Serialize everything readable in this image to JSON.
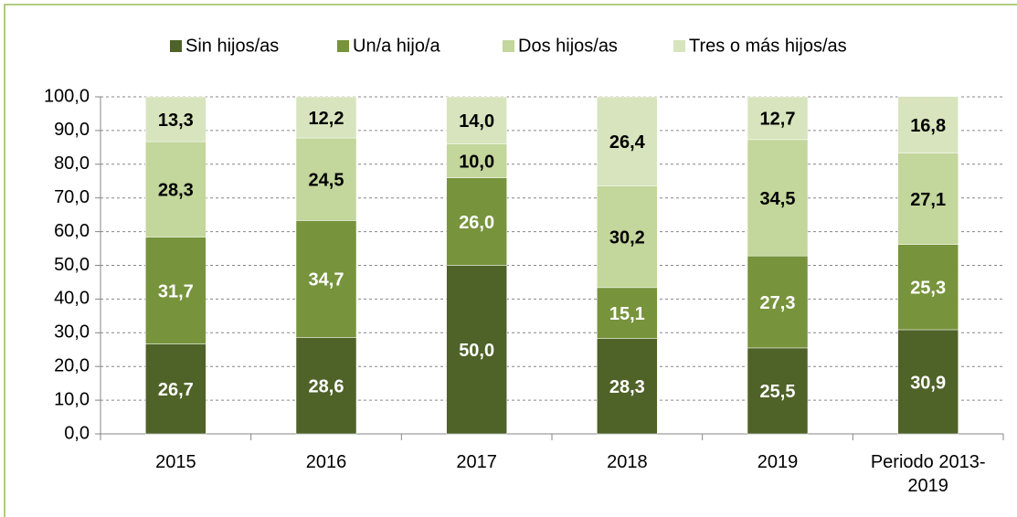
{
  "chart_data": {
    "type": "stacked_bar",
    "categories": [
      "2015",
      "2016",
      "2017",
      "2018",
      "2019",
      "Periodo 2013-2019"
    ],
    "series": [
      {
        "name": "Sin hijos/as",
        "color": "#4f6228",
        "label_color": "#ffffff",
        "values": [
          26.7,
          28.6,
          50.0,
          28.3,
          25.5,
          30.9
        ],
        "value_labels": [
          "26,7",
          "28,6",
          "50,0",
          "28,3",
          "25,5",
          "30,9"
        ]
      },
      {
        "name": "Un/a hijo/a",
        "color": "#77933c",
        "label_color": "#ffffff",
        "values": [
          31.7,
          34.7,
          26.0,
          15.1,
          27.3,
          25.3
        ],
        "value_labels": [
          "31,7",
          "34,7",
          "26,0",
          "15,1",
          "27,3",
          "25,3"
        ]
      },
      {
        "name": "Dos hijos/as",
        "color": "#c3d69b",
        "label_color": "#000000",
        "values": [
          28.3,
          24.5,
          10.0,
          30.2,
          34.5,
          27.1
        ],
        "value_labels": [
          "28,3",
          "24,5",
          "10,0",
          "30,2",
          "34,5",
          "27,1"
        ]
      },
      {
        "name": "Tres o más hijos/as",
        "color": "#d7e4bd",
        "label_color": "#000000",
        "values": [
          13.3,
          12.2,
          14.0,
          26.4,
          12.7,
          16.8
        ],
        "value_labels": [
          "13,3",
          "12,2",
          "14,0",
          "26,4",
          "12,7",
          "16,8"
        ]
      }
    ],
    "ylim": [
      0,
      100
    ],
    "yticks": [
      {
        "value": 0,
        "label": "0,0"
      },
      {
        "value": 10,
        "label": "10,0"
      },
      {
        "value": 20,
        "label": "20,0"
      },
      {
        "value": 30,
        "label": "30,0"
      },
      {
        "value": 40,
        "label": "40,0"
      },
      {
        "value": 50,
        "label": "50,0"
      },
      {
        "value": 60,
        "label": "60,0"
      },
      {
        "value": 70,
        "label": "70,0"
      },
      {
        "value": 80,
        "label": "80,0"
      },
      {
        "value": 90,
        "label": "90,0"
      },
      {
        "value": 100,
        "label": "100,0"
      }
    ],
    "grid": true,
    "legend": "top"
  }
}
